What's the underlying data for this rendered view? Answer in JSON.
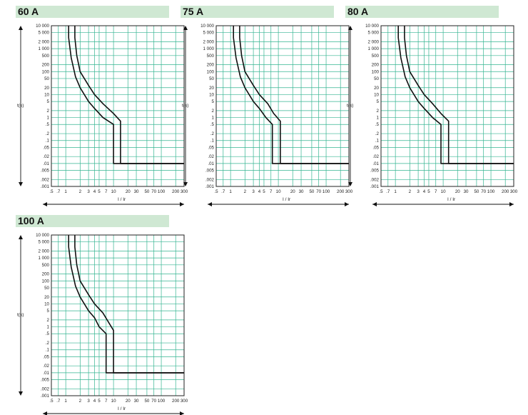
{
  "colors": {
    "header_bg": "#cfe8d3",
    "grid": "#36b592",
    "curve": "#111111",
    "frame": "#222222"
  },
  "axes": {
    "ylabel": "t(s)",
    "xlabel": "I / Ir",
    "yticks": [
      "10 000",
      "5 000",
      "2 000",
      "1 000",
      "500",
      "200",
      "100",
      "50",
      "20",
      "10",
      "5",
      "2",
      "1",
      ".5",
      ".2",
      ".1",
      ".05",
      ".02",
      ".01",
      ".005",
      ".002",
      ".001"
    ],
    "xticks": [
      ".5",
      ".7",
      "1",
      "2",
      "3",
      "4",
      "5",
      "7",
      "10",
      "20",
      "30",
      "50",
      "70",
      "100",
      "200",
      "300"
    ]
  },
  "chart_data": [
    {
      "type": "line",
      "title": "60 A",
      "xlabel": "I / Ir",
      "ylabel": "t(s)",
      "x_scale": "log",
      "y_scale": "log",
      "xlim": [
        0.5,
        300
      ],
      "ylim": [
        0.001,
        10000
      ],
      "grid": true,
      "series": [
        {
          "x": [
            1.15,
            1.15,
            1.3,
            1.6,
            2,
            3,
            4,
            6,
            10,
            10,
            300
          ],
          "y": [
            10000,
            3000,
            400,
            60,
            20,
            5,
            2.5,
            1,
            0.5,
            0.01,
            0.01
          ]
        },
        {
          "x": [
            1.55,
            1.55,
            1.7,
            2,
            3,
            4,
            6,
            10,
            14,
            14,
            300
          ],
          "y": [
            10000,
            3000,
            500,
            100,
            25,
            10,
            4,
            1.5,
            0.7,
            0.01,
            0.01
          ]
        }
      ]
    },
    {
      "type": "line",
      "title": "75 A",
      "xlabel": "I / Ir",
      "ylabel": "t(s)",
      "x_scale": "log",
      "y_scale": "log",
      "xlim": [
        0.5,
        300
      ],
      "ylim": [
        0.001,
        10000
      ],
      "grid": true,
      "series": [
        {
          "x": [
            1.15,
            1.15,
            1.3,
            1.6,
            2,
            3,
            4,
            5.5,
            7.5,
            7.5,
            300
          ],
          "y": [
            10000,
            3000,
            400,
            60,
            20,
            5,
            2.5,
            1,
            0.5,
            0.01,
            0.01
          ]
        },
        {
          "x": [
            1.55,
            1.55,
            1.7,
            2,
            3,
            4,
            6,
            8,
            11,
            11,
            300
          ],
          "y": [
            10000,
            3000,
            500,
            100,
            25,
            10,
            4,
            1.5,
            0.7,
            0.01,
            0.01
          ]
        }
      ]
    },
    {
      "type": "line",
      "title": "80 A",
      "xlabel": "I / Ir",
      "ylabel": "t(s)",
      "x_scale": "log",
      "y_scale": "log",
      "xlim": [
        0.5,
        300
      ],
      "ylim": [
        0.001,
        10000
      ],
      "grid": true,
      "series": [
        {
          "x": [
            1.15,
            1.15,
            1.3,
            1.6,
            2,
            3,
            4,
            6,
            9,
            9,
            300
          ],
          "y": [
            10000,
            3000,
            400,
            60,
            20,
            5,
            2.5,
            1,
            0.5,
            0.01,
            0.01
          ]
        },
        {
          "x": [
            1.55,
            1.55,
            1.7,
            2,
            3,
            4,
            6,
            9,
            13,
            13,
            300
          ],
          "y": [
            10000,
            3000,
            500,
            100,
            25,
            10,
            4,
            1.5,
            0.7,
            0.01,
            0.01
          ]
        }
      ]
    },
    {
      "type": "line",
      "title": "100 A",
      "xlabel": "I / Ir",
      "ylabel": "t(s)",
      "x_scale": "log",
      "y_scale": "log",
      "xlim": [
        0.5,
        300
      ],
      "ylim": [
        0.001,
        10000
      ],
      "grid": true,
      "series": [
        {
          "x": [
            1.15,
            1.15,
            1.3,
            1.6,
            2,
            3,
            4,
            5,
            7,
            7,
            300
          ],
          "y": [
            10000,
            3000,
            400,
            60,
            20,
            5,
            2.5,
            1,
            0.5,
            0.01,
            0.01
          ]
        },
        {
          "x": [
            1.55,
            1.55,
            1.7,
            2,
            3,
            4,
            6,
            8,
            10,
            10,
            300
          ],
          "y": [
            10000,
            3000,
            500,
            100,
            25,
            10,
            4,
            1.5,
            0.7,
            0.01,
            0.01
          ]
        }
      ]
    }
  ]
}
